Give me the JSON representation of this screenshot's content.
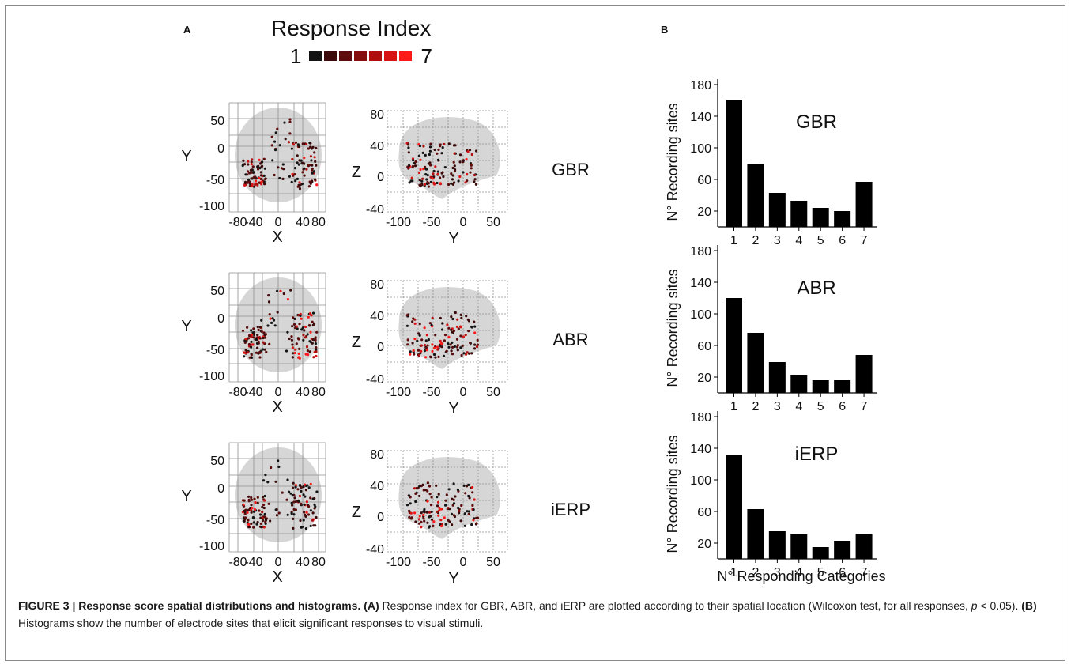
{
  "panels": {
    "a_label": "A",
    "b_label": "B"
  },
  "response_index": {
    "title": "Response Index",
    "min_label": "1",
    "max_label": "7",
    "colors": [
      "#141414",
      "#3c0a0a",
      "#5c0c0c",
      "#850e0e",
      "#b00e0e",
      "#d71414",
      "#ff1a1a"
    ]
  },
  "colors": {
    "brain": "#d6d6d6",
    "grid": "#8f8f8f",
    "bar": "#000000",
    "border": "#8a8a8a"
  },
  "rows": [
    {
      "name": "GBR"
    },
    {
      "name": "ABR"
    },
    {
      "name": "iERP"
    }
  ],
  "axial": {
    "xlabel": "X",
    "ylabel": "Y",
    "xticks": [
      "-80",
      "-40",
      "0",
      "40",
      "80"
    ],
    "yticks": [
      "50",
      "0",
      "-50",
      "-100"
    ]
  },
  "sagittal": {
    "xlabel": "Y",
    "ylabel": "Z",
    "xticks": [
      "-100",
      "-50",
      "0",
      "50"
    ],
    "yticks": [
      "80",
      "40",
      "0",
      "-40"
    ]
  },
  "chart_data": [
    {
      "type": "bar",
      "title": "GBR",
      "categories": [
        "1",
        "2",
        "3",
        "4",
        "5",
        "6",
        "7"
      ],
      "values": [
        160,
        80,
        43,
        33,
        24,
        20,
        57
      ],
      "xlabel": "",
      "ylabel": "N° Recording sites",
      "yticks": [
        "180",
        "140",
        "100",
        "60",
        "20"
      ],
      "ylim": [
        0,
        180
      ]
    },
    {
      "type": "bar",
      "title": "ABR",
      "categories": [
        "1",
        "2",
        "3",
        "4",
        "5",
        "6",
        "7"
      ],
      "values": [
        120,
        76,
        39,
        23,
        16,
        16,
        48
      ],
      "xlabel": "",
      "ylabel": "N° Recording sites",
      "yticks": [
        "180",
        "140",
        "100",
        "60",
        "20"
      ],
      "ylim": [
        0,
        180
      ]
    },
    {
      "type": "bar",
      "title": "iERP",
      "categories": [
        "1",
        "2",
        "3",
        "4",
        "5",
        "6",
        "7"
      ],
      "values": [
        131,
        63,
        35,
        31,
        15,
        23,
        32
      ],
      "xlabel": "N° Responding Categories",
      "ylabel": "N° Recording sites",
      "yticks": [
        "180",
        "140",
        "100",
        "60",
        "20"
      ],
      "ylim": [
        0,
        180
      ]
    }
  ],
  "caption": {
    "head": "FIGURE 3 | Response score spatial distributions and histograms.",
    "a_tag": "(A)",
    "a_text": " Response index for GBR, ABR, and iERP are plotted according to their spatial location (Wilcoxon test, for all responses, ",
    "p_symbol": "p",
    "p_rest": " < 0.05). ",
    "b_tag": "(B)",
    "b_text": " Histograms show the number of electrode sites that elicit significant responses to visual stimuli."
  }
}
